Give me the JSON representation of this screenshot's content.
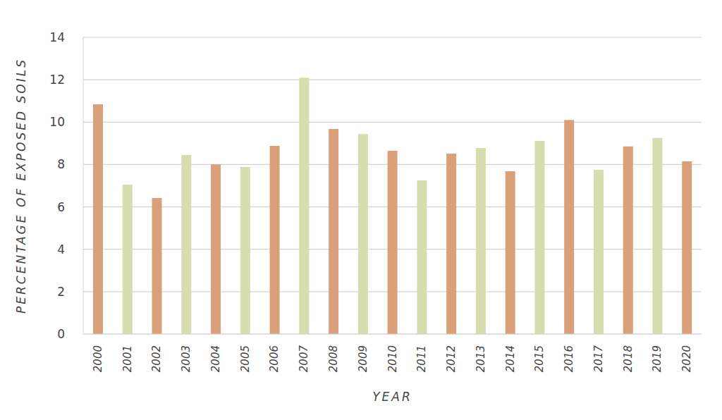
{
  "chart_data": {
    "type": "bar",
    "y_label": "PERCENTAGE OF EXPOSED SOILS",
    "x_label": "YEAR",
    "categories": [
      "2000",
      "2001",
      "2002",
      "2003",
      "2004",
      "2005",
      "2006",
      "2007",
      "2008",
      "2009",
      "2010",
      "2011",
      "2012",
      "2013",
      "2014",
      "2015",
      "2016",
      "2017",
      "2018",
      "2019",
      "2020"
    ],
    "values": [
      10.84,
      7.05,
      6.42,
      8.45,
      8.01,
      7.88,
      8.88,
      12.1,
      9.68,
      9.44,
      8.65,
      7.25,
      8.51,
      8.78,
      7.68,
      9.11,
      10.1,
      7.75,
      8.85,
      9.25,
      8.15
    ],
    "colors": [
      "#d9a07a",
      "#d8ddb0",
      "#d9a07a",
      "#d8ddb0",
      "#d9a07a",
      "#d8ddb0",
      "#d9a07a",
      "#d8ddb0",
      "#d9a07a",
      "#d8ddb0",
      "#d9a07a",
      "#d8ddb0",
      "#d9a07a",
      "#d8ddb0",
      "#d9a07a",
      "#d8ddb0",
      "#d9a07a",
      "#d8ddb0",
      "#d9a07a",
      "#d8ddb0",
      "#d9a07a"
    ],
    "ylim": [
      0,
      14
    ],
    "yticks": [
      0,
      2,
      4,
      6,
      8,
      10,
      12,
      14
    ],
    "grid": true
  }
}
